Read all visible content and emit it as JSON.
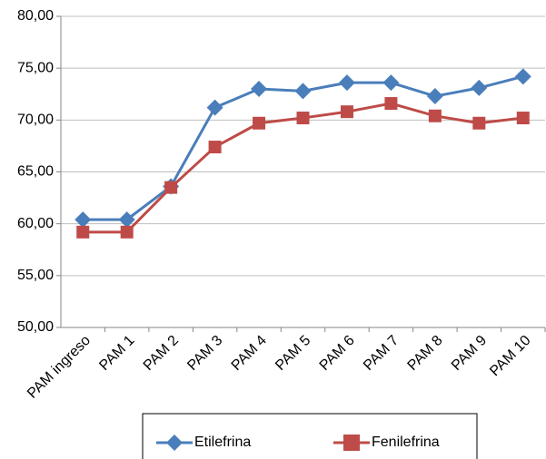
{
  "chart_data": {
    "type": "line",
    "categories": [
      "PAM ingreso",
      "PAM 1",
      "PAM 2",
      "PAM 3",
      "PAM 4",
      "PAM 5",
      "PAM 6",
      "PAM 7",
      "PAM 8",
      "PAM 9",
      "PAM 10"
    ],
    "series": [
      {
        "name": "Etilefrina",
        "color": "#4a7ebb",
        "marker": "diamond",
        "values": [
          60.4,
          60.4,
          63.6,
          71.2,
          73.0,
          72.8,
          73.6,
          73.6,
          72.3,
          73.1,
          74.2
        ]
      },
      {
        "name": "Fenilefrina",
        "color": "#be4b48",
        "marker": "square",
        "values": [
          59.2,
          59.2,
          63.5,
          67.4,
          69.7,
          70.2,
          70.8,
          71.6,
          70.4,
          69.7,
          70.2
        ]
      }
    ],
    "ylim": [
      50,
      80
    ],
    "yticks": [
      {
        "value": 50,
        "label": "50,00"
      },
      {
        "value": 55,
        "label": "55,00"
      },
      {
        "value": 60,
        "label": "60,00"
      },
      {
        "value": 65,
        "label": "65,00"
      },
      {
        "value": 70,
        "label": "70,00"
      },
      {
        "value": 75,
        "label": "75,00"
      },
      {
        "value": 80,
        "label": "80,00"
      }
    ],
    "grid": true,
    "legend": "bottom"
  }
}
